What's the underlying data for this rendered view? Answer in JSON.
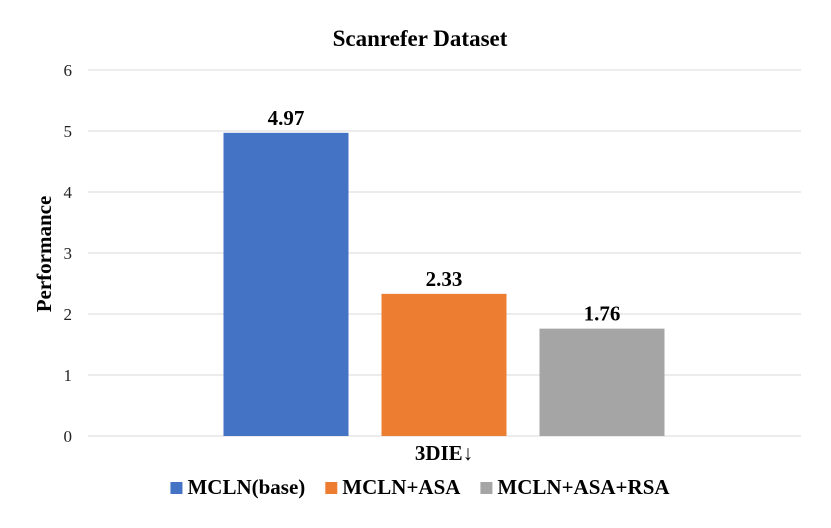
{
  "chart_data": {
    "type": "bar",
    "title": "Scanrefer Dataset",
    "ylabel": "Performance",
    "xlabel": "",
    "categories": [
      "3DIE↓"
    ],
    "ylim": [
      0,
      6
    ],
    "yticks": [
      0,
      1,
      2,
      3,
      4,
      5,
      6
    ],
    "grid": true,
    "legend_position": "bottom",
    "series": [
      {
        "name": "MCLN(base)",
        "color": "#4472C4",
        "values": [
          4.97
        ],
        "label": "4.97"
      },
      {
        "name": "MCLN+ASA",
        "color": "#ED7D31",
        "values": [
          2.33
        ],
        "label": "2.33"
      },
      {
        "name": "MCLN+ASA+RSA",
        "color": "#A5A5A5",
        "values": [
          1.76
        ],
        "label": "1.76"
      }
    ]
  }
}
